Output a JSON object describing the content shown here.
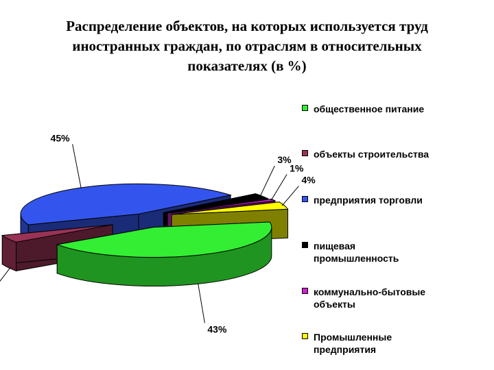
{
  "title_lines": [
    "Распределение объектов, на которых используется труд",
    "иностранных граждан, по отраслям в относительных",
    "показателях (в %)"
  ],
  "chart_data": {
    "type": "pie",
    "style": "3d-exploded",
    "title": "Распределение объектов, на которых используется труд иностранных граждан, по отраслям в относительных показателях (в %)",
    "legend_position": "right",
    "slices": [
      {
        "name": "общественное питание",
        "value": 43,
        "label": "43%",
        "color": "#33ee33"
      },
      {
        "name": "объекты строительства",
        "value": 4,
        "label": "4%",
        "color": "#993355"
      },
      {
        "name": "предприятия торговли",
        "value": 45,
        "label": "45%",
        "color": "#3355ee"
      },
      {
        "name": "пищевая промышленность",
        "value": 3,
        "label": "3%",
        "color": "#000000"
      },
      {
        "name": "коммунально-бытовые объекты",
        "value": 1,
        "label": "1%",
        "color": "#cc22cc"
      },
      {
        "name": "Промышленные предприятия",
        "value": 4,
        "label": "4%",
        "color": "#ffff00"
      }
    ]
  },
  "legend": [
    {
      "lines": [
        "общественное питание"
      ],
      "color": "#33ee33"
    },
    {
      "lines": [
        "объекты строительства"
      ],
      "color": "#993355"
    },
    {
      "lines": [
        "предприятия торговли"
      ],
      "color": "#3355ee"
    },
    {
      "lines": [
        "пищевая",
        "промышленность"
      ],
      "color": "#000000"
    },
    {
      "lines": [
        "коммунально-бытовые",
        "объекты"
      ],
      "color": "#cc22cc"
    },
    {
      "lines": [
        "Промышленные",
        "предприятия"
      ],
      "color": "#ffff00"
    }
  ]
}
